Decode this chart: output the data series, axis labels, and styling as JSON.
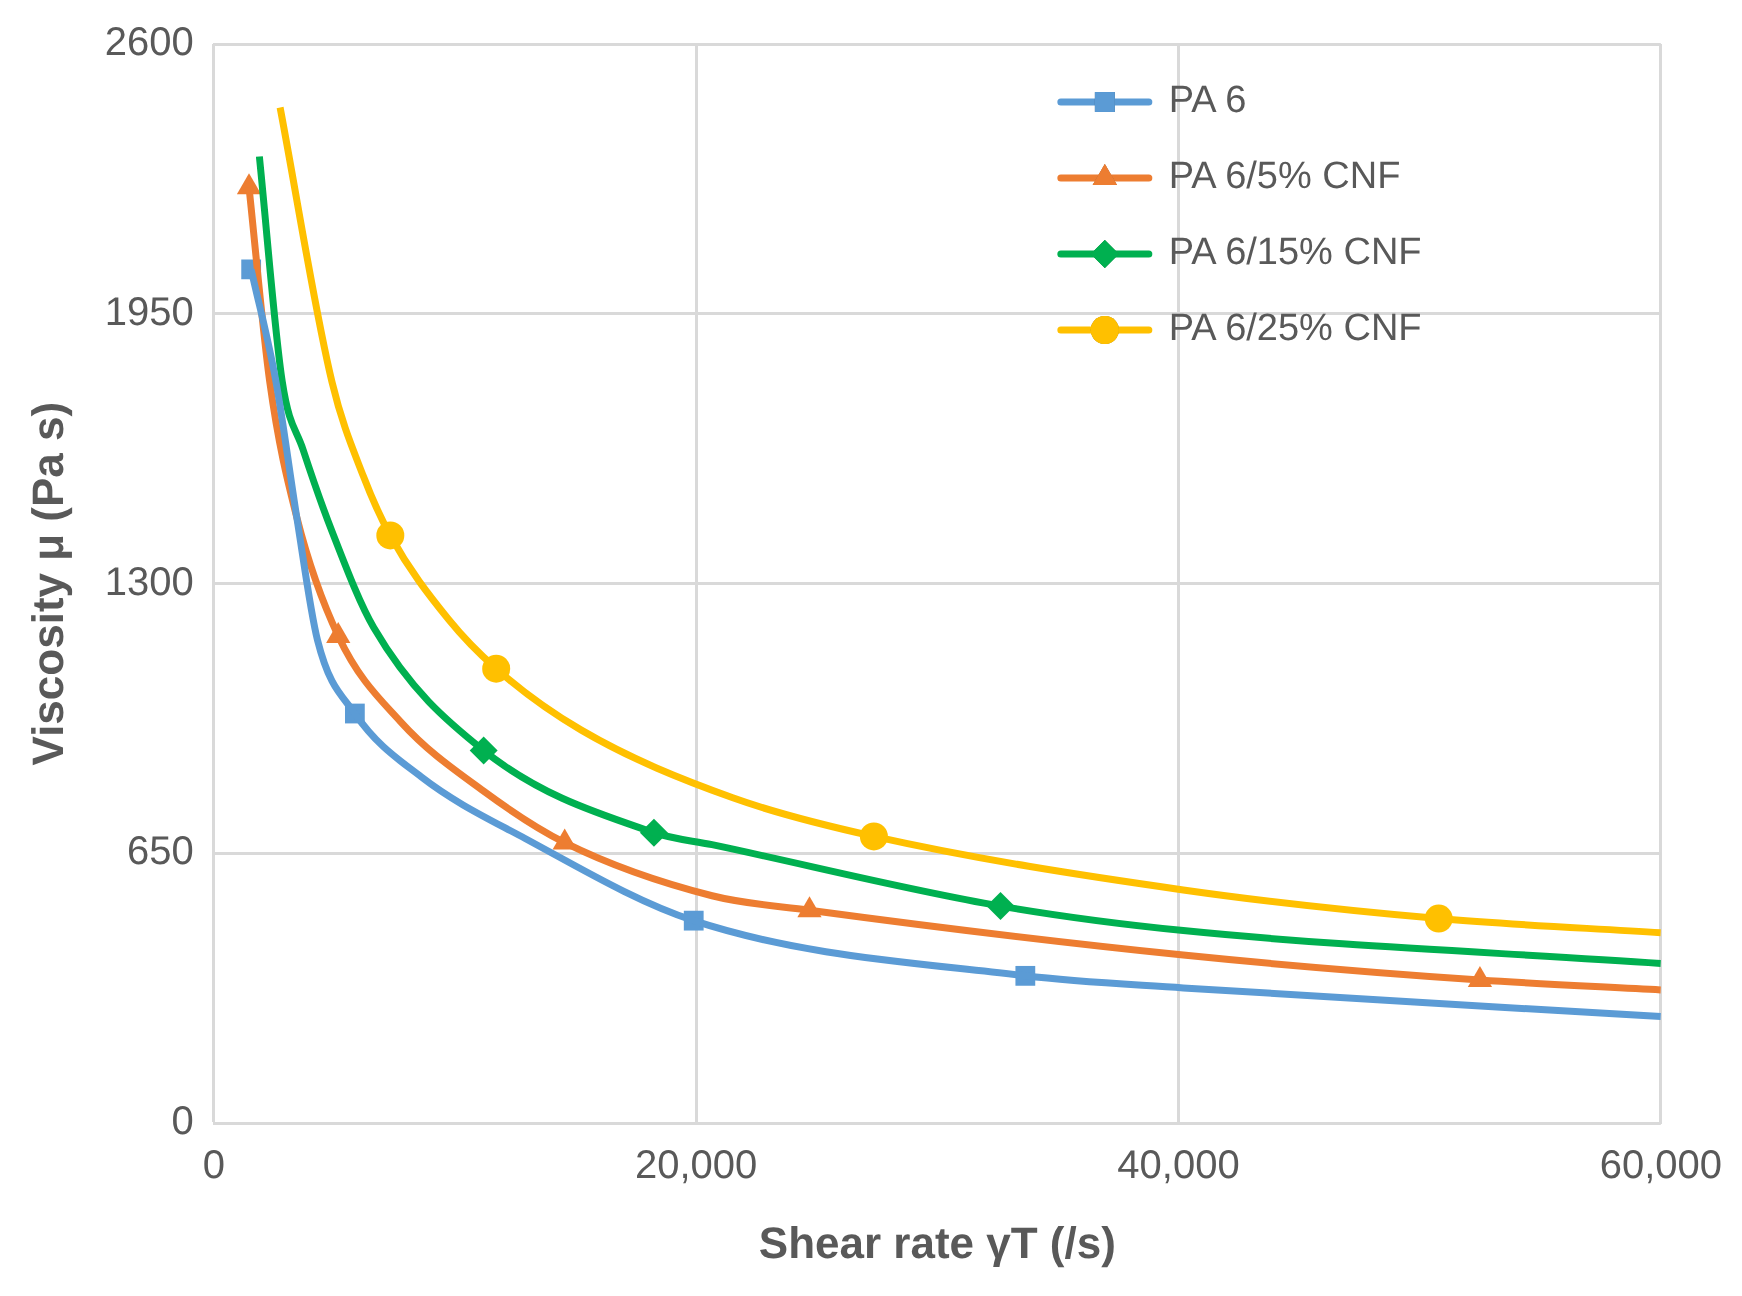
{
  "chart_data": {
    "type": "line",
    "xlabel": "Shear rate γT (/s)",
    "ylabel": "Viscosity μ (Pa s)",
    "xlim": [
      0,
      60000
    ],
    "xticks": [
      0,
      {
        "value": 20000,
        "label": "20,000"
      },
      {
        "value": 40000,
        "label": "40,000"
      },
      {
        "value": 60000,
        "label": "60,000"
      }
    ],
    "ylim": [
      0,
      2600
    ],
    "yticks": [
      0,
      650,
      1300,
      1950,
      2600
    ],
    "grid": true,
    "legend": "top right",
    "line_style": "solid",
    "series": [
      {
        "color": "#5b9bd5",
        "marker": "none",
        "x": [
          1550,
          2580,
          3440,
          4300,
          5850,
          8610,
          12910,
          19900,
          33650,
          40200,
          60000
        ],
        "values": [
          2057,
          1786,
          1460,
          1164,
          987,
          834,
          686,
          488,
          355,
          326,
          257
        ]
      },
      {
        "color": "#ed7d31",
        "marker": "none",
        "x": [
          1460,
          2320,
          3440,
          5160,
          7750,
          11190,
          14550,
          20660,
          24700,
          40200,
          52500,
          60000
        ],
        "values": [
          2255,
          1786,
          1460,
          1174,
          967,
          800,
          676,
          548,
          513,
          405,
          345,
          321
        ]
      },
      {
        "color": "#00b050",
        "marker": "none",
        "x": [
          1890,
          2840,
          3700,
          4900,
          6630,
          11190,
          18250,
          20660,
          32620,
          40200,
          60000
        ],
        "values": [
          2329,
          1786,
          1623,
          1426,
          1194,
          898,
          700,
          671,
          523,
          464,
          385
        ]
      },
      {
        "color": "#ffc000",
        "marker": "none",
        "x": [
          2750,
          4900,
          6200,
          7320,
          9730,
          11710,
          15240,
          21520,
          27370,
          40200,
          50790,
          60000
        ],
        "values": [
          2447,
          1786,
          1559,
          1416,
          1214,
          1095,
          947,
          784,
          691,
          562,
          493,
          459
        ]
      },
      {
        "type": "scatter",
        "name": "PA 6",
        "color": "#5b9bd5",
        "marker": "square",
        "x": [
          1550,
          5850,
          19900,
          33650
        ],
        "values": [
          2057,
          987,
          488,
          355
        ]
      },
      {
        "type": "scatter",
        "name": "PA 6/5% CNF",
        "color": "#ed7d31",
        "marker": "triangle",
        "x": [
          1460,
          5160,
          14550,
          24700,
          52500
        ],
        "values": [
          2255,
          1174,
          676,
          513,
          345
        ]
      },
      {
        "type": "scatter",
        "name": "PA 6/15% CNF",
        "color": "#00b050",
        "marker": "diamond",
        "x": [
          11190,
          18250,
          32620
        ],
        "values": [
          898,
          700,
          523
        ]
      },
      {
        "type": "scatter",
        "name": "PA 6/25% CNF",
        "color": "#ffc000",
        "marker": "circle",
        "x": [
          7320,
          11710,
          27370,
          50790
        ],
        "values": [
          1416,
          1095,
          691,
          493
        ]
      }
    ]
  }
}
